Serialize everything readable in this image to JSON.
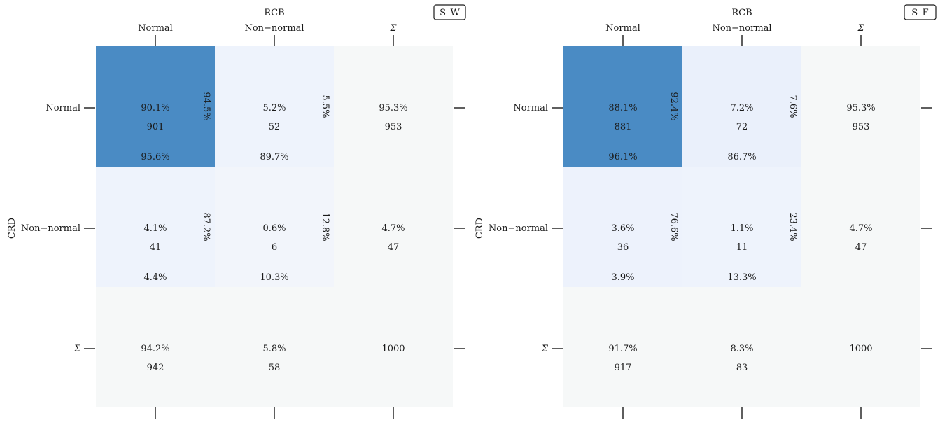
{
  "chart_data": [
    {
      "type": "heatmap",
      "badge": "S–W",
      "xlabel": "RCB",
      "ylabel": "CRD",
      "col_labels": [
        "Normal",
        "Non−normal",
        "Σ"
      ],
      "row_labels": [
        "Normal",
        "Non−normal",
        "Σ"
      ],
      "cells": [
        [
          {
            "pct": "90.1%",
            "count": "901",
            "row_pct": "94.5%",
            "col_pct": "95.6%"
          },
          {
            "pct": "5.2%",
            "count": "52",
            "row_pct": "5.5%",
            "col_pct": "89.7%"
          },
          {
            "pct": "95.3%",
            "count": "953",
            "row_pct": "",
            "col_pct": ""
          }
        ],
        [
          {
            "pct": "4.1%",
            "count": "41",
            "row_pct": "87.2%",
            "col_pct": "4.4%"
          },
          {
            "pct": "0.6%",
            "count": "6",
            "row_pct": "12.8%",
            "col_pct": "10.3%"
          },
          {
            "pct": "4.7%",
            "count": "47",
            "row_pct": "",
            "col_pct": ""
          }
        ],
        [
          {
            "pct": "94.2%",
            "count": "942",
            "row_pct": "",
            "col_pct": ""
          },
          {
            "pct": "5.8%",
            "count": "58",
            "row_pct": "",
            "col_pct": ""
          },
          {
            "pct": "",
            "count": "1000",
            "row_pct": "",
            "col_pct": ""
          }
        ]
      ],
      "fills": [
        [
          "#4a8bc4",
          "#eef3fc",
          "#f6f8f8"
        ],
        [
          "#eef3fc",
          "#f2f5fb",
          "#f6f8f8"
        ],
        [
          "#f6f8f8",
          "#f6f8f8",
          "#f6f8f8"
        ]
      ]
    },
    {
      "type": "heatmap",
      "badge": "S–F",
      "xlabel": "RCB",
      "ylabel": "CRD",
      "col_labels": [
        "Normal",
        "Non−normal",
        "Σ"
      ],
      "row_labels": [
        "Normal",
        "Non−normal",
        "Σ"
      ],
      "cells": [
        [
          {
            "pct": "88.1%",
            "count": "881",
            "row_pct": "92.4%",
            "col_pct": "96.1%"
          },
          {
            "pct": "7.2%",
            "count": "72",
            "row_pct": "7.6%",
            "col_pct": "86.7%"
          },
          {
            "pct": "95.3%",
            "count": "953",
            "row_pct": "",
            "col_pct": ""
          }
        ],
        [
          {
            "pct": "3.6%",
            "count": "36",
            "row_pct": "76.6%",
            "col_pct": "3.9%"
          },
          {
            "pct": "1.1%",
            "count": "11",
            "row_pct": "23.4%",
            "col_pct": "13.3%"
          },
          {
            "pct": "4.7%",
            "count": "47",
            "row_pct": "",
            "col_pct": ""
          }
        ],
        [
          {
            "pct": "91.7%",
            "count": "917",
            "row_pct": "",
            "col_pct": ""
          },
          {
            "pct": "8.3%",
            "count": "83",
            "row_pct": "",
            "col_pct": ""
          },
          {
            "pct": "",
            "count": "1000",
            "row_pct": "",
            "col_pct": ""
          }
        ]
      ],
      "fills": [
        [
          "#4a8bc4",
          "#eaf0fb",
          "#f6f8f8"
        ],
        [
          "#edf2fc",
          "#eef3fc",
          "#f6f8f8"
        ],
        [
          "#f6f8f8",
          "#f6f8f8",
          "#f6f8f8"
        ]
      ]
    }
  ]
}
